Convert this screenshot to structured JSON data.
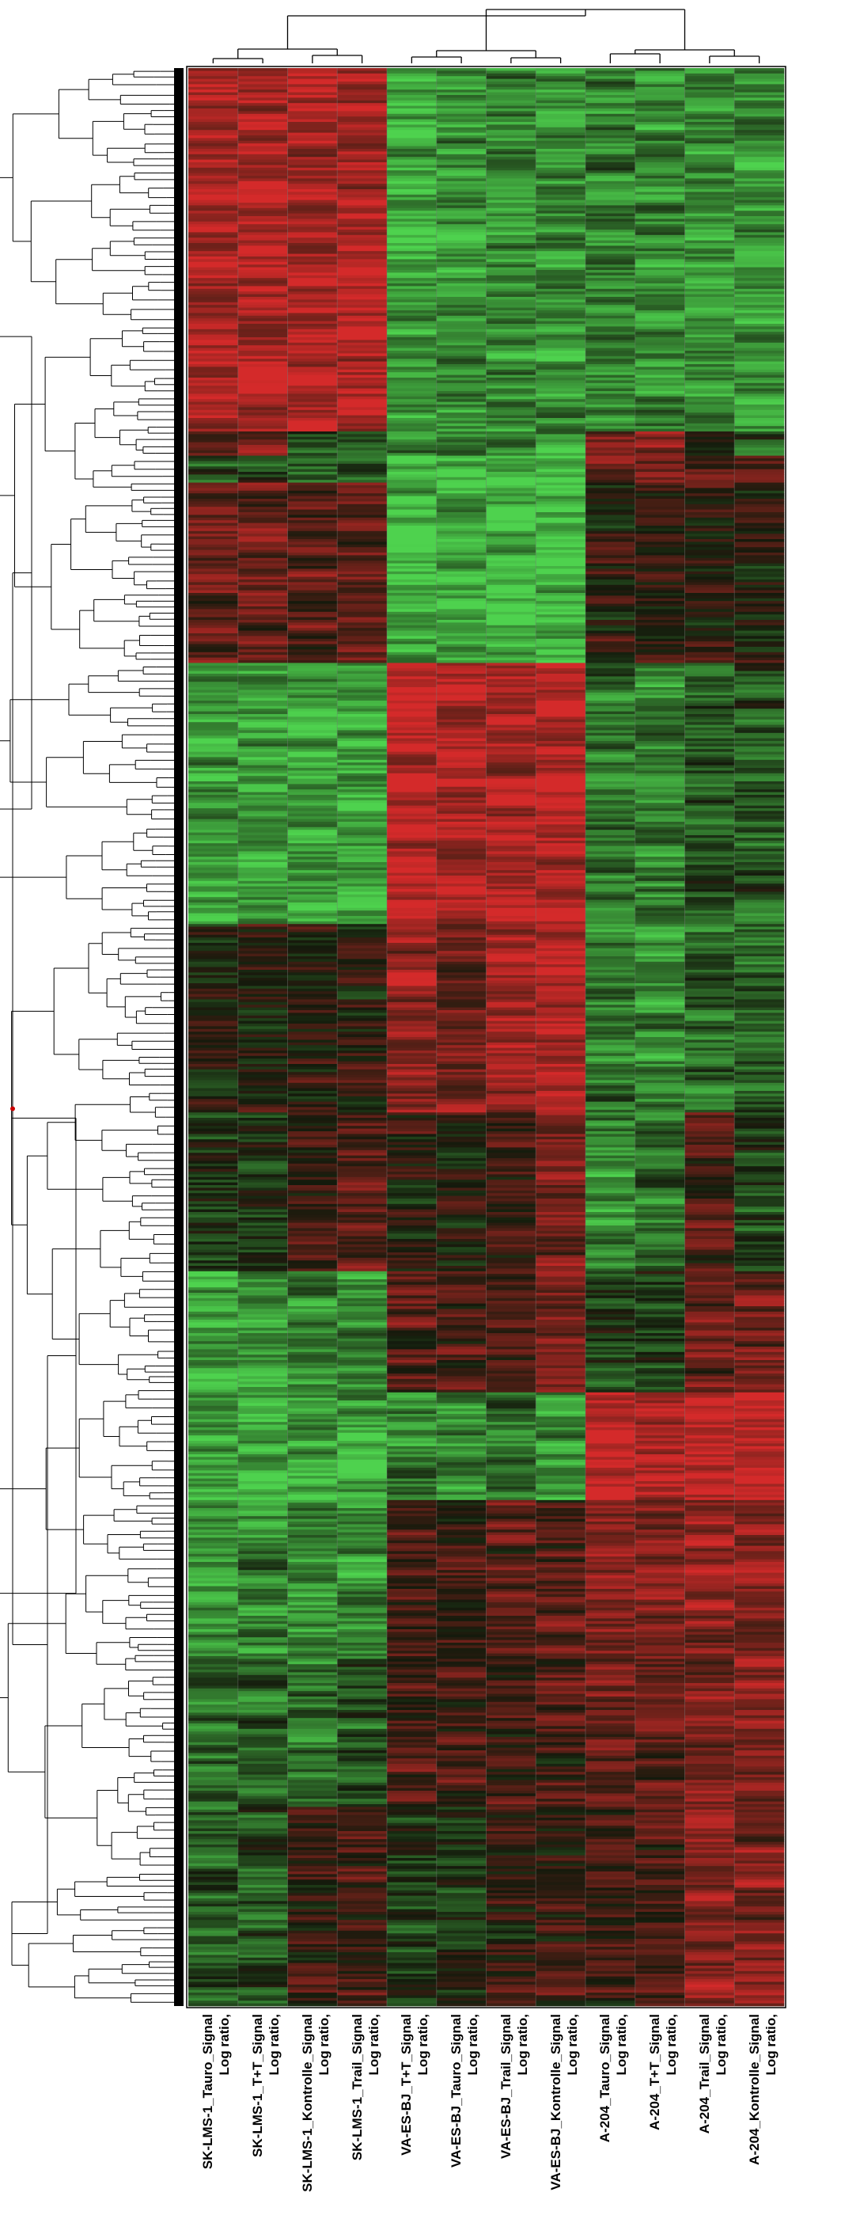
{
  "chart_data": {
    "type": "heatmap",
    "title": "",
    "xlabel": "",
    "ylabel": "",
    "columns": [
      {
        "name": "SK-LMS-1_Tauro_Signal",
        "suffix": "Log ratio,"
      },
      {
        "name": "SK-LMS-1_T+T_Signal",
        "suffix": "Log ratio,"
      },
      {
        "name": "SK-LMS-1_Kontrolle_Signal",
        "suffix": "Log ratio,"
      },
      {
        "name": "SK-LMS-1_Trail_Signal",
        "suffix": "Log ratio,"
      },
      {
        "name": "VA-ES-BJ_T+T_Signal",
        "suffix": "Log ratio,"
      },
      {
        "name": "VA-ES-BJ_Tauro_Signal",
        "suffix": "Log ratio,"
      },
      {
        "name": "VA-ES-BJ_Trail_Signal",
        "suffix": "Log ratio,"
      },
      {
        "name": "VA-ES-BJ_Kontrolle_Signal",
        "suffix": "Log ratio,"
      },
      {
        "name": "A-204_Tauro_Signal",
        "suffix": "Log ratio,"
      },
      {
        "name": "A-204_T+T_Signal",
        "suffix": "Log ratio,"
      },
      {
        "name": "A-204_Trail_Signal",
        "suffix": "Log ratio,"
      },
      {
        "name": "A-204_Kontrolle_Signal",
        "suffix": "Log ratio,"
      }
    ],
    "colormap": {
      "up": "#d42a2a",
      "neutral": "#141a0c",
      "down": "#4ed24e"
    },
    "row_blocks": [
      {
        "rows": [
          0,
          0.27
        ],
        "bias": [
          0.78,
          0.78,
          0.78,
          0.78,
          -0.7,
          -0.62,
          -0.6,
          -0.65,
          -0.5,
          -0.55,
          -0.62,
          -0.6
        ]
      },
      {
        "rows": [
          0.27,
          0.29
        ],
        "bias": [
          0.3,
          0.4,
          -0.3,
          -0.25,
          -0.55,
          -0.5,
          -0.65,
          -0.6,
          0.45,
          0.5,
          0.2,
          -0.3
        ]
      },
      {
        "rows": [
          0.29,
          0.31
        ],
        "bias": [
          -0.3,
          -0.2,
          -0.4,
          -0.35,
          -0.85,
          -0.85,
          -0.85,
          -0.85,
          0.5,
          0.5,
          0.4,
          0.4
        ]
      },
      {
        "rows": [
          0.31,
          0.445
        ],
        "bias": [
          0.4,
          0.45,
          0.35,
          0.4,
          -0.8,
          -0.8,
          -0.82,
          -0.8,
          0.1,
          0.1,
          0.15,
          0.05
        ]
      },
      {
        "rows": [
          0.445,
          0.64
        ],
        "bias": [
          -0.7,
          -0.72,
          -0.68,
          -0.72,
          0.85,
          0.8,
          0.8,
          0.85,
          -0.5,
          -0.55,
          -0.3,
          -0.35
        ]
      },
      {
        "rows": [
          0.64,
          0.78
        ],
        "bias": [
          0.0,
          0.05,
          0.1,
          0.1,
          0.6,
          0.55,
          0.7,
          0.75,
          -0.5,
          -0.55,
          -0.35,
          -0.4
        ]
      },
      {
        "rows": [
          0.78,
          0.9
        ],
        "bias": [
          -0.1,
          -0.1,
          0.2,
          0.35,
          0.1,
          0.1,
          0.2,
          0.5,
          -0.6,
          -0.5,
          0.3,
          -0.2
        ]
      },
      {
        "rows": [
          0.9,
          0.99
        ],
        "bias": [
          -0.7,
          -0.6,
          -0.55,
          -0.6,
          0.35,
          0.25,
          0.3,
          0.5,
          -0.2,
          -0.15,
          0.4,
          0.45
        ]
      },
      {
        "rows": [
          0.99,
          1.07
        ],
        "bias": [
          -0.75,
          -0.75,
          -0.75,
          -0.75,
          -0.55,
          -0.6,
          -0.55,
          -0.65,
          0.9,
          0.85,
          0.9,
          0.92
        ]
      },
      {
        "rows": [
          1.07,
          1.19
        ],
        "bias": [
          -0.6,
          -0.55,
          -0.6,
          -0.6,
          0.3,
          0.25,
          0.35,
          0.3,
          0.55,
          0.55,
          0.6,
          0.6
        ]
      },
      {
        "rows": [
          1.19,
          1.3
        ],
        "bias": [
          -0.45,
          -0.4,
          -0.45,
          -0.3,
          0.25,
          0.3,
          0.2,
          0.3,
          0.45,
          0.4,
          0.55,
          0.6
        ]
      },
      {
        "rows": [
          1.3,
          1.45
        ],
        "bias": [
          -0.35,
          -0.3,
          0.15,
          0.25,
          -0.2,
          -0.1,
          0.1,
          0.2,
          0.2,
          0.25,
          0.55,
          0.55
        ]
      }
    ]
  }
}
